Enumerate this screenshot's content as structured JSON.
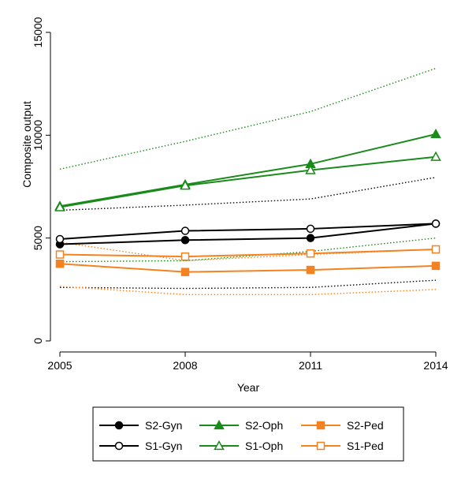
{
  "chart_data": {
    "type": "line",
    "xlabel": "Year",
    "ylabel": "Composite output",
    "x": [
      2005,
      2008,
      2011,
      2014
    ],
    "xticks": [
      "2005",
      "2008",
      "2011",
      "2014"
    ],
    "yticks": [
      "0",
      "5000",
      "10000",
      "15000"
    ],
    "xlim": [
      2005,
      2014
    ],
    "ylim": [
      0,
      15000
    ],
    "grid": false,
    "legend_position": "bottom",
    "series": [
      {
        "name": "S2-Gyn",
        "color": "#000000",
        "marker": "circle-filled",
        "style": "solid",
        "values": [
          4700,
          4900,
          5000,
          5700
        ]
      },
      {
        "name": "S2-Oph",
        "color": "#1a8a1a",
        "marker": "triangle-filled",
        "style": "solid",
        "values": [
          6550,
          7600,
          8600,
          10050
        ]
      },
      {
        "name": "S2-Ped",
        "color": "#f58220",
        "marker": "square-filled",
        "style": "solid",
        "values": [
          3750,
          3350,
          3450,
          3650
        ]
      },
      {
        "name": "S1-Gyn",
        "color": "#000000",
        "marker": "circle-hollow",
        "style": "solid",
        "values": [
          4950,
          5350,
          5450,
          5700
        ]
      },
      {
        "name": "S1-Oph",
        "color": "#1a8a1a",
        "marker": "triangle-hollow",
        "style": "solid",
        "values": [
          6500,
          7550,
          8300,
          8950
        ]
      },
      {
        "name": "S1-Ped",
        "color": "#f58220",
        "marker": "square-hollow",
        "style": "solid",
        "values": [
          4200,
          4100,
          4250,
          4450
        ]
      },
      {
        "color": "#1a8a1a",
        "style": "dotted",
        "values": [
          8350,
          9700,
          11150,
          13250
        ]
      },
      {
        "color": "#000000",
        "style": "dotted",
        "values": [
          6350,
          6600,
          6900,
          7950
        ]
      },
      {
        "color": "#1a8a1a",
        "style": "dotted",
        "values": [
          3850,
          3900,
          4350,
          5000
        ]
      },
      {
        "color": "#f58220",
        "style": "dotted",
        "values": [
          4800,
          3900,
          4200,
          4450
        ]
      },
      {
        "color": "#000000",
        "style": "dotted",
        "values": [
          2600,
          2550,
          2600,
          2950
        ]
      },
      {
        "color": "#f58220",
        "style": "dotted",
        "values": [
          2650,
          2250,
          2250,
          2500
        ]
      }
    ]
  }
}
